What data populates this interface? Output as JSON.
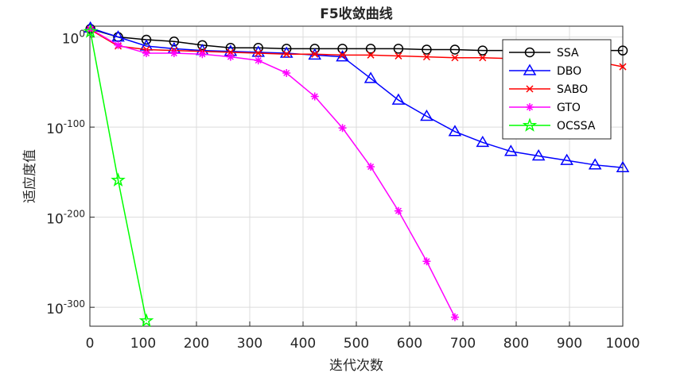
{
  "chart_data": {
    "type": "line",
    "title": "F5收敛曲线",
    "x_label": "迭代次数",
    "y_label": "适应度值",
    "log_scale_y": true,
    "grid": true,
    "legend_position": "northeast",
    "x": [
      1,
      53,
      106,
      158,
      211,
      264,
      316,
      369,
      422,
      474,
      527,
      579,
      632,
      685,
      737,
      790,
      842,
      895,
      948,
      1000
    ],
    "xlim": [
      0,
      1000
    ],
    "xticks": [
      0,
      100,
      200,
      300,
      400,
      500,
      600,
      700,
      800,
      900,
      1000
    ],
    "ylim": [
      1e-321,
      1000000000000.0
    ],
    "yticks": [
      {
        "value": 1e-300,
        "label": "10^-300"
      },
      {
        "value": 1e-200,
        "label": "10^-200"
      },
      {
        "value": 1e-100,
        "label": "10^-100"
      },
      {
        "value": 1,
        "label": "10^0"
      }
    ],
    "series": [
      {
        "name": "SSA",
        "color": "#000000",
        "marker": "circle",
        "values": [
          1000000000.0,
          1,
          0.001,
          1e-05,
          1e-09,
          1e-12,
          1e-12,
          1e-13,
          1e-13,
          1e-13,
          1e-13,
          1e-13,
          1e-14,
          1e-14,
          1e-15,
          1e-15,
          1e-15,
          1e-15,
          1e-15,
          1e-15
        ]
      },
      {
        "name": "DBO",
        "color": "#0000ff",
        "marker": "triangle",
        "values": [
          10000000000.0,
          1,
          1e-10,
          1e-13,
          1e-15,
          1e-16,
          1e-17,
          1e-18,
          1e-20,
          1e-22,
          1e-46,
          1e-70,
          1e-88,
          1e-105,
          1e-117,
          1e-127,
          1e-132,
          1e-137,
          1e-142,
          1e-145
        ]
      },
      {
        "name": "SABO",
        "color": "#ff0000",
        "marker": "x",
        "values": [
          100000000.0,
          1e-10,
          1e-14,
          1e-15,
          1e-16,
          1e-17,
          1e-18,
          1e-19,
          1e-19,
          1e-20,
          1e-20,
          1e-21,
          1e-22,
          1e-23,
          1e-23,
          1e-24,
          1e-25,
          1e-26,
          1e-27,
          1e-33
        ]
      },
      {
        "name": "GTO",
        "color": "#ff00ff",
        "marker": "asterisk",
        "values": [
          1000000000.0,
          1e-09,
          1e-18,
          1e-18,
          1e-19,
          1e-22,
          1e-26,
          1e-40,
          1e-66,
          1e-101,
          1e-144,
          1e-193,
          1e-249,
          1e-311,
          null,
          null,
          null,
          null,
          null,
          null
        ]
      },
      {
        "name": "OCSSA",
        "color": "#00ff00",
        "marker": "star",
        "values": [
          1000000.0,
          1e-159,
          1e-315,
          null,
          null,
          null,
          null,
          null,
          null,
          null,
          null,
          null,
          null,
          null,
          null,
          null,
          null,
          null,
          null,
          null
        ]
      }
    ]
  }
}
